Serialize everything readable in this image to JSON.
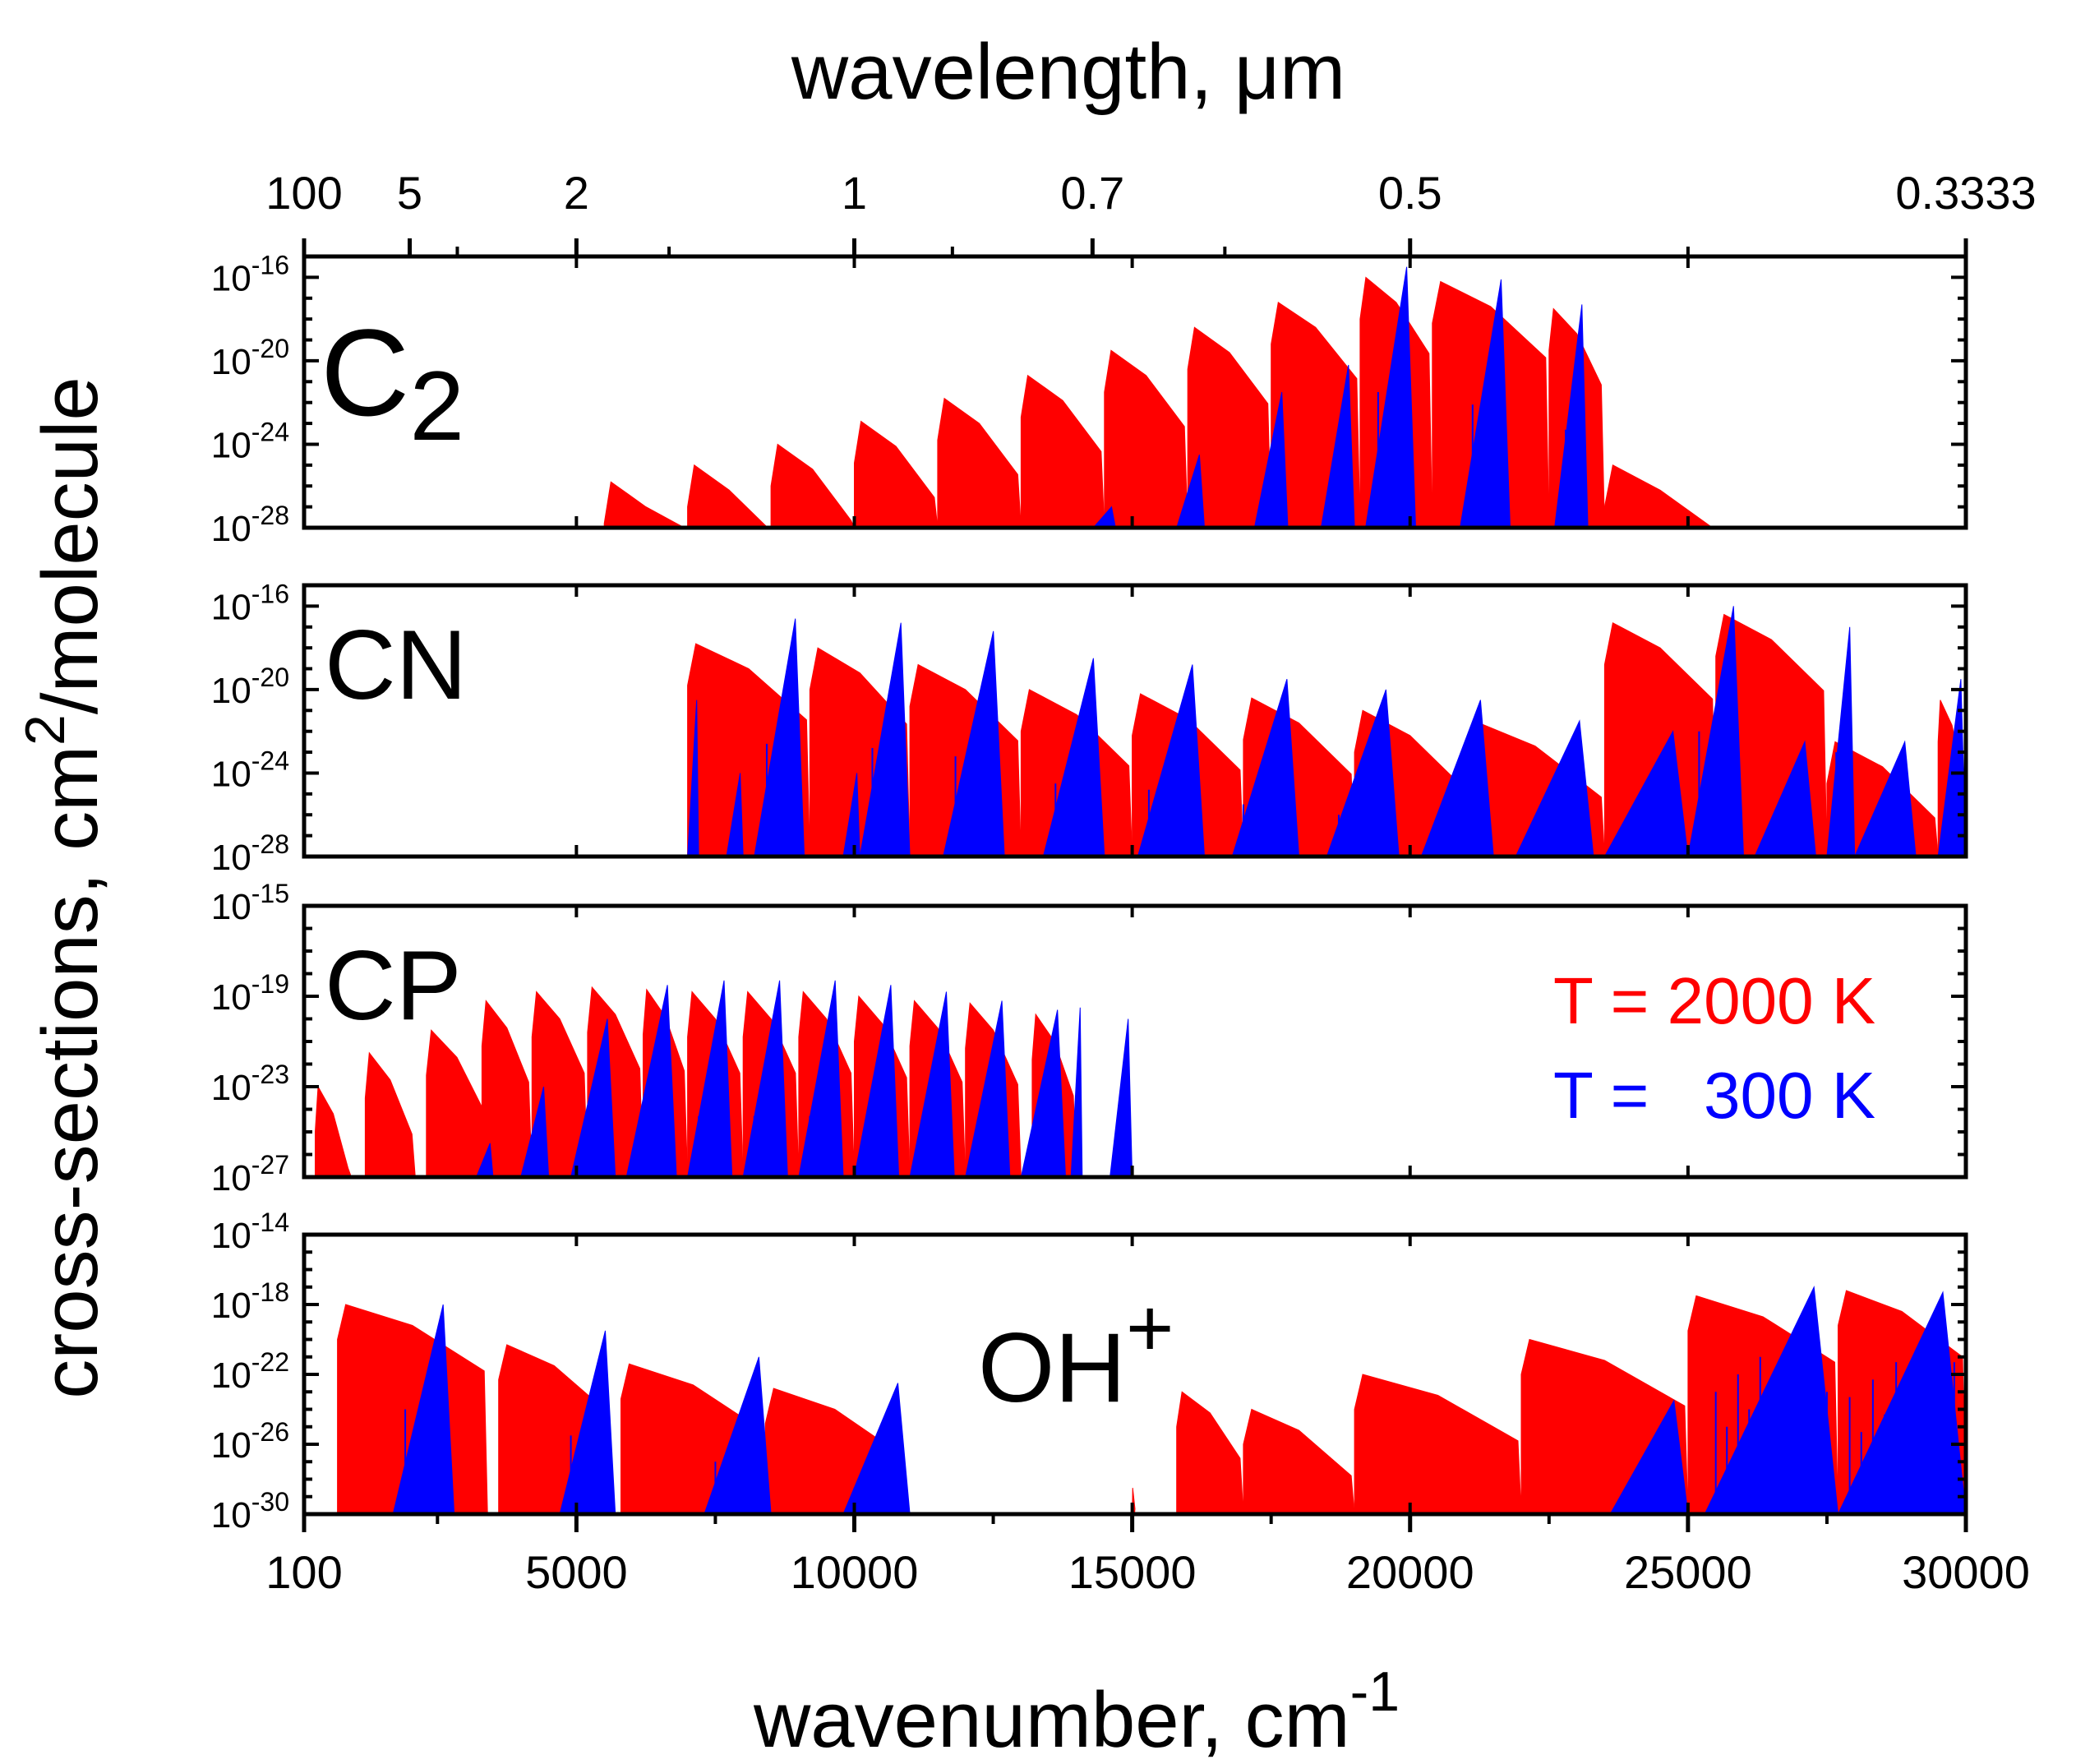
{
  "chart_data": {
    "type": "area",
    "figure": {
      "x_axis_title": "wavenumber, cm",
      "x_axis_title_sup": "-1",
      "top_axis_title": "wavelength, μm",
      "y_axis_title_a": "cross-sections, cm",
      "y_axis_title_sup": "2",
      "y_axis_title_b": "/molecule",
      "xlim": [
        100,
        30000
      ],
      "x_ticks": [
        100,
        5000,
        10000,
        15000,
        20000,
        25000,
        30000
      ],
      "x_tick_labels": [
        "100",
        "5000",
        "10000",
        "15000",
        "20000",
        "25000",
        "30000"
      ],
      "top_ticks": [
        100,
        2000,
        5000,
        10000,
        14286,
        20000,
        30000
      ],
      "top_tick_labels": [
        "100",
        "5",
        "2",
        "1",
        "0.7",
        "0.5",
        "0.3333"
      ],
      "top_minor_wavenumbers": [
        2857,
        6667,
        11765,
        16667,
        25000
      ],
      "y_scale": "log",
      "grid": false
    },
    "legend": {
      "placement": "right of CP panel",
      "entries": [
        {
          "label": "T = 2000 K",
          "color": "#ff0000"
        },
        {
          "label": "T =   300 K",
          "color": "#0000ff"
        }
      ]
    },
    "panels": [
      {
        "molecule": "C",
        "molecule_sub": "2",
        "molecule_sup": "",
        "ylim_exp": [
          -28,
          -15
        ],
        "y_ticks_exp": [
          -28,
          -24,
          -20,
          -16
        ],
        "series": [
          {
            "name": "T = 2000 K",
            "color": "#ff0000",
            "bands": [
              [
                5500,
                7000,
                -25.8
              ],
              [
                7000,
                8500,
                -25.0
              ],
              [
                8500,
                10000,
                -24.0
              ],
              [
                10000,
                11500,
                -22.9
              ],
              [
                11500,
                13000,
                -21.8
              ],
              [
                13000,
                14500,
                -20.7
              ],
              [
                14500,
                16000,
                -19.5
              ],
              [
                16000,
                17500,
                -18.4
              ],
              [
                17500,
                19100,
                -17.2
              ],
              [
                19100,
                20400,
                -16.0
              ],
              [
                20400,
                22500,
                -16.2
              ],
              [
                22500,
                23500,
                -17.5
              ],
              [
                23500,
                25500,
                -25.0
              ]
            ]
          },
          {
            "name": "T = 300 K",
            "color": "#0000ff",
            "bands": [
              [
                14300,
                14700,
                -27.0
              ],
              [
                15800,
                16300,
                -24.5
              ],
              [
                17200,
                17800,
                -21.5
              ],
              [
                18400,
                19000,
                -20.2
              ],
              [
                19200,
                20100,
                -15.5
              ],
              [
                20900,
                21800,
                -16.1
              ],
              [
                22600,
                23200,
                -17.3
              ]
            ]
          }
        ]
      },
      {
        "molecule": "CN",
        "molecule_sub": "",
        "molecule_sup": "",
        "ylim_exp": [
          -28,
          -15
        ],
        "y_ticks_exp": [
          -28,
          -24,
          -20,
          -16
        ],
        "series": [
          {
            "name": "T = 2000 K",
            "color": "#ff0000",
            "bands": [
              [
                7000,
                9200,
                -17.8
              ],
              [
                9200,
                11000,
                -18.0
              ],
              [
                11000,
                13000,
                -18.8
              ],
              [
                13000,
                15000,
                -20.0
              ],
              [
                15000,
                17000,
                -20.2
              ],
              [
                17000,
                19000,
                -20.4
              ],
              [
                19000,
                21000,
                -21.0
              ],
              [
                21000,
                23500,
                -21.5
              ],
              [
                23500,
                25500,
                -16.8
              ],
              [
                25500,
                27500,
                -16.4
              ],
              [
                27500,
                29500,
                -22.5
              ],
              [
                29500,
                30000,
                -20.5
              ]
            ]
          },
          {
            "name": "T = 300 K",
            "color": "#0000ff",
            "bands": [
              [
                7000,
                7200,
                -20.5
              ],
              [
                7700,
                8000,
                -24.0
              ],
              [
                8200,
                9100,
                -16.6
              ],
              [
                9800,
                10100,
                -24.0
              ],
              [
                10100,
                11000,
                -16.8
              ],
              [
                11600,
                12700,
                -17.2
              ],
              [
                13400,
                14500,
                -18.5
              ],
              [
                15100,
                16300,
                -18.8
              ],
              [
                16800,
                18000,
                -19.5
              ],
              [
                18500,
                19800,
                -20.0
              ],
              [
                20200,
                21500,
                -20.5
              ],
              [
                21900,
                23300,
                -21.5
              ],
              [
                23500,
                25000,
                -22.0
              ],
              [
                25000,
                26000,
                -16.0
              ],
              [
                26200,
                27300,
                -22.5
              ],
              [
                27500,
                28000,
                -17.0
              ],
              [
                28000,
                29100,
                -22.5
              ],
              [
                29500,
                30000,
                -19.5
              ]
            ]
          }
        ]
      },
      {
        "molecule": "CP",
        "molecule_sub": "",
        "molecule_sup": "",
        "ylim_exp": [
          -27,
          -15
        ],
        "y_ticks_exp": [
          -27,
          -23,
          -19,
          -15
        ],
        "series": [
          {
            "name": "T = 2000 K",
            "color": "#ff0000",
            "bands": [
              [
                300,
                950,
                -23.0
              ],
              [
                1200,
                2100,
                -21.5
              ],
              [
                2300,
                3400,
                -20.5
              ],
              [
                3300,
                4200,
                -19.2
              ],
              [
                4200,
                5200,
                -18.8
              ],
              [
                5200,
                6200,
                -18.6
              ],
              [
                6200,
                7000,
                -18.7
              ],
              [
                7000,
                8000,
                -18.8
              ],
              [
                8000,
                9000,
                -18.8
              ],
              [
                9000,
                10000,
                -18.8
              ],
              [
                10000,
                11000,
                -19.0
              ],
              [
                11000,
                12000,
                -19.2
              ],
              [
                12000,
                13000,
                -19.3
              ],
              [
                13200,
                14000,
                -19.8
              ]
            ]
          },
          {
            "name": "T = 300 K",
            "color": "#0000ff",
            "bands": [
              [
                3200,
                3500,
                -25.5
              ],
              [
                4000,
                4500,
                -23.0
              ],
              [
                4900,
                5700,
                -20.0
              ],
              [
                5900,
                6800,
                -18.5
              ],
              [
                7000,
                7800,
                -18.3
              ],
              [
                8000,
                8800,
                -18.3
              ],
              [
                9000,
                9800,
                -18.3
              ],
              [
                10000,
                10800,
                -18.5
              ],
              [
                11000,
                11800,
                -18.8
              ],
              [
                12000,
                12800,
                -19.2
              ],
              [
                13000,
                13800,
                -19.6
              ],
              [
                13900,
                14100,
                -19.5
              ],
              [
                14600,
                15000,
                -20.0
              ]
            ]
          }
        ]
      },
      {
        "molecule": "OH",
        "molecule_sub": "",
        "molecule_sup": "+",
        "ylim_exp": [
          -30,
          -14
        ],
        "y_ticks_exp": [
          -30,
          -26,
          -22,
          -18,
          -14
        ],
        "series": [
          {
            "name": "T = 2000 K",
            "color": "#ff0000",
            "bands": [
              [
                700,
                3400,
                -18.0
              ],
              [
                3600,
                5600,
                -20.3
              ],
              [
                5800,
                8400,
                -21.4
              ],
              [
                8400,
                10900,
                -22.8
              ],
              [
                15000,
                15100,
                -28.5
              ],
              [
                15800,
                17000,
                -23.0
              ],
              [
                17000,
                19000,
                -24.0
              ],
              [
                19000,
                22000,
                -22.0
              ],
              [
                22000,
                25000,
                -20.0
              ],
              [
                25000,
                27700,
                -17.5
              ],
              [
                27700,
                30000,
                -17.2
              ]
            ]
          },
          {
            "name": "T = 300 K",
            "color": "#0000ff",
            "bands": [
              [
                1700,
                2800,
                -18.0
              ],
              [
                4700,
                5700,
                -19.5
              ],
              [
                7300,
                8500,
                -21.0
              ],
              [
                9800,
                11000,
                -22.5
              ],
              [
                23600,
                25000,
                -23.5
              ],
              [
                25300,
                27700,
                -17.0
              ],
              [
                27700,
                30000,
                -17.3
              ]
            ]
          }
        ]
      }
    ]
  }
}
